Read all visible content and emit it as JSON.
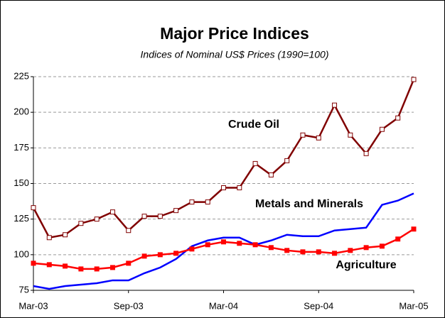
{
  "chart_data": {
    "type": "line",
    "title": "Major Price Indices",
    "subtitle": "Indices of Nominal US$ Prices  (1990=100)",
    "categories": [
      "Mar-03",
      null,
      null,
      null,
      null,
      null,
      "Sep-03",
      null,
      null,
      null,
      null,
      null,
      "Mar-04",
      null,
      null,
      null,
      null,
      null,
      "Sep-04",
      null,
      null,
      null,
      null,
      null,
      "Mar-05"
    ],
    "series": [
      {
        "name": "Crude Oil",
        "color": "#800000",
        "marker": "square-open",
        "values": [
          133,
          112,
          114,
          122,
          125,
          130,
          117,
          127,
          127,
          131,
          137,
          137,
          147,
          147,
          164,
          156,
          166,
          184,
          182,
          205,
          184,
          171,
          188,
          196,
          223
        ]
      },
      {
        "name": "Metals and Minerals",
        "color": "#0000ff",
        "marker": null,
        "values": [
          78,
          76,
          78,
          79,
          80,
          82,
          82,
          87,
          91,
          97,
          106,
          110,
          112,
          112,
          107,
          110,
          114,
          113,
          113,
          117,
          118,
          119,
          135,
          138,
          143
        ]
      },
      {
        "name": "Agriculture",
        "color": "#ff0000",
        "marker": "square",
        "values": [
          94,
          93,
          92,
          90,
          90,
          91,
          94,
          99,
          100,
          101,
          104,
          107,
          109,
          108,
          107,
          105,
          103,
          102,
          102,
          101,
          103,
          105,
          106,
          111,
          118
        ]
      }
    ],
    "ylim": [
      75,
      225
    ],
    "yticks": [
      75,
      100,
      125,
      150,
      175,
      200,
      225
    ],
    "grid": true
  }
}
